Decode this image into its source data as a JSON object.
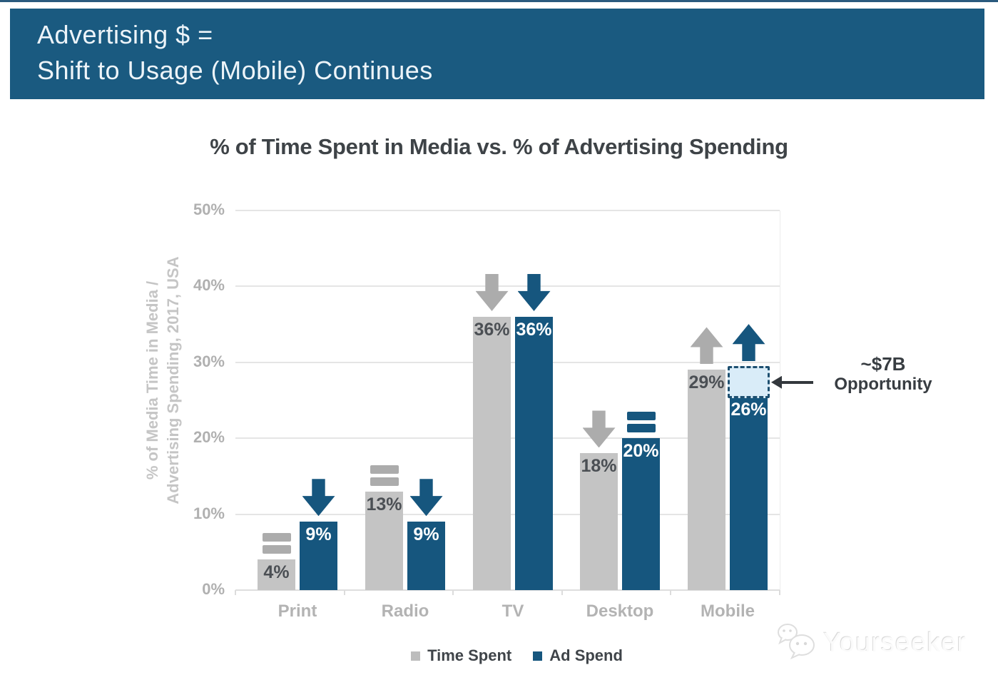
{
  "banner": {
    "line1": "Advertising $ =",
    "line2": "Shift to Usage (Mobile) Continues"
  },
  "chart_data": {
    "type": "bar",
    "title": "% of Time Spent in Media vs. % of Advertising Spending",
    "ylabel": "% of Media Time in Media / Advertising Spending, 2017, USA",
    "ylabel_lines": [
      "% of Media Time in Media /",
      "Advertising Spending, 2017, USA"
    ],
    "categories": [
      "Print",
      "Radio",
      "TV",
      "Desktop",
      "Mobile"
    ],
    "series": [
      {
        "name": "Time Spent",
        "color": "#c4c4c4",
        "values": [
          4,
          13,
          36,
          18,
          29
        ],
        "labels": [
          "4%",
          "13%",
          "36%",
          "18%",
          "29%"
        ],
        "label_color": "#4b4f54",
        "trends": [
          "equal",
          "equal",
          "down",
          "down",
          "up"
        ],
        "trend_color": "#acacac"
      },
      {
        "name": "Ad Spend",
        "color": "#16567e",
        "values": [
          9,
          9,
          36,
          20,
          26
        ],
        "labels": [
          "9%",
          "9%",
          "36%",
          "20%",
          "26%"
        ],
        "label_color": "#ffffff",
        "trends": [
          "down",
          "down",
          "down",
          "equal",
          "up"
        ],
        "trend_color": "#16567e"
      }
    ],
    "ylim": [
      0,
      50
    ],
    "yticks": [
      "0%",
      "10%",
      "20%",
      "30%",
      "40%",
      "50%"
    ],
    "grid": "horizontal",
    "legend_position": "bottom",
    "annotation": {
      "line1": "~$7B",
      "line2": "Opportunity",
      "category": "Mobile",
      "series": "Ad Spend",
      "gap_from_pct": 26,
      "gap_to_pct": 29.5,
      "box_fill": "#d9ecf8",
      "box_border": "#1d4f70",
      "arrow_color": "#33383d",
      "text_color": "#383d42"
    }
  },
  "legend": {
    "items": [
      {
        "label": "Time Spent",
        "color": "#bdbdbd"
      },
      {
        "label": "Ad Spend",
        "color": "#16567e"
      }
    ]
  },
  "watermark": {
    "text": "Yourseeker"
  },
  "colors": {
    "banner_bg": "#1a5a80",
    "banner_text": "#edf4f9",
    "title": "#3e4347",
    "axis_text": "#b0b0b0",
    "ylabel_text": "#c5c5c5",
    "grid": "#e5e5e5",
    "baseline": "#dedede",
    "category_text": "#b3b3b3"
  }
}
